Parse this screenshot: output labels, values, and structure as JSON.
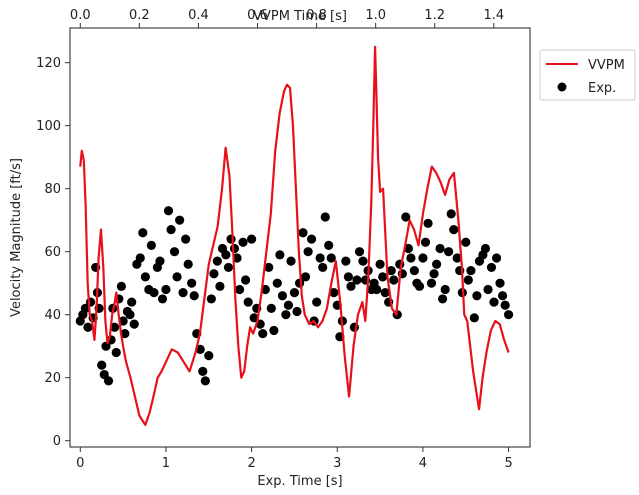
{
  "chart_data": {
    "type": "line+scatter",
    "xlabel": "Exp. Time [s]",
    "x2label": "VVPM Time [s]",
    "ylabel": "Velocity Magnitude [ft/s]",
    "xlim": [
      -0.12,
      5.25
    ],
    "x2lim": [
      -0.0348,
      1.5225
    ],
    "ylim": [
      -2,
      131
    ],
    "xticks": [
      0,
      1,
      2,
      3,
      4,
      5
    ],
    "x2ticks": [
      0.0,
      0.2,
      0.4,
      0.6,
      0.8,
      1.0,
      1.2,
      1.4
    ],
    "yticks": [
      0,
      20,
      40,
      60,
      80,
      100,
      120
    ],
    "legend_position": "outside-top-right",
    "grid": false,
    "series": [
      {
        "name": "VVPM",
        "kind": "line",
        "axis": "x2",
        "color": "#e8111b",
        "x": [
          0.0,
          0.005,
          0.012,
          0.018,
          0.025,
          0.032,
          0.04,
          0.048,
          0.055,
          0.062,
          0.07,
          0.078,
          0.085,
          0.092,
          0.1,
          0.108,
          0.115,
          0.122,
          0.13,
          0.138,
          0.145,
          0.155,
          0.17,
          0.185,
          0.2,
          0.22,
          0.235,
          0.25,
          0.262,
          0.275,
          0.29,
          0.31,
          0.33,
          0.35,
          0.37,
          0.39,
          0.405,
          0.42,
          0.435,
          0.45,
          0.465,
          0.48,
          0.492,
          0.505,
          0.515,
          0.525,
          0.535,
          0.545,
          0.555,
          0.565,
          0.575,
          0.585,
          0.6,
          0.615,
          0.63,
          0.645,
          0.66,
          0.675,
          0.69,
          0.7,
          0.71,
          0.72,
          0.73,
          0.74,
          0.75,
          0.76,
          0.775,
          0.79,
          0.805,
          0.82,
          0.835,
          0.85,
          0.865,
          0.88,
          0.895,
          0.91,
          0.925,
          0.94,
          0.955,
          0.965,
          0.975,
          0.985,
          0.992,
          0.998,
          1.002,
          1.008,
          1.015,
          1.025,
          1.04,
          1.055,
          1.07,
          1.085,
          1.1,
          1.115,
          1.13,
          1.145,
          1.16,
          1.175,
          1.19,
          1.205,
          1.22,
          1.235,
          1.25,
          1.265,
          1.28,
          1.292,
          1.3,
          1.31,
          1.32,
          1.33,
          1.34,
          1.35,
          1.362,
          1.375,
          1.39,
          1.405,
          1.42,
          1.435,
          1.45
        ],
        "y": [
          87,
          92,
          89,
          75,
          50,
          40,
          38,
          32,
          42,
          58,
          67,
          55,
          38,
          31,
          33,
          40,
          43,
          47,
          40,
          34,
          30,
          25,
          20,
          14,
          8,
          5,
          9,
          15,
          20,
          22,
          25,
          29,
          28,
          25,
          22,
          28,
          34,
          45,
          56,
          62,
          68,
          80,
          93,
          84,
          66,
          45,
          30,
          20,
          22,
          30,
          36,
          34,
          38,
          48,
          60,
          72,
          92,
          104,
          111,
          113,
          112,
          100,
          80,
          60,
          46,
          40,
          37,
          38,
          36,
          38,
          42,
          50,
          57,
          44,
          27,
          14,
          30,
          40,
          44,
          38,
          52,
          75,
          100,
          125,
          112,
          90,
          79,
          80,
          52,
          42,
          40,
          55,
          62,
          70,
          67,
          62,
          72,
          80,
          87,
          85,
          82,
          78,
          83,
          85,
          70,
          55,
          40,
          38,
          30,
          22,
          16,
          10,
          20,
          28,
          35,
          38,
          37,
          32,
          28
        ]
      },
      {
        "name": "Exp.",
        "kind": "scatter",
        "axis": "x",
        "color": "#000000",
        "x": [
          0.0,
          0.03,
          0.06,
          0.09,
          0.12,
          0.15,
          0.18,
          0.2,
          0.22,
          0.25,
          0.28,
          0.3,
          0.33,
          0.36,
          0.38,
          0.4,
          0.42,
          0.45,
          0.48,
          0.5,
          0.52,
          0.55,
          0.58,
          0.6,
          0.63,
          0.66,
          0.7,
          0.73,
          0.76,
          0.8,
          0.83,
          0.86,
          0.9,
          0.93,
          0.96,
          1.0,
          1.03,
          1.06,
          1.1,
          1.13,
          1.16,
          1.2,
          1.23,
          1.26,
          1.3,
          1.33,
          1.36,
          1.4,
          1.43,
          1.46,
          1.5,
          1.53,
          1.56,
          1.6,
          1.63,
          1.66,
          1.7,
          1.73,
          1.76,
          1.8,
          1.83,
          1.86,
          1.9,
          1.93,
          1.96,
          2.0,
          2.03,
          2.06,
          2.1,
          2.13,
          2.16,
          2.2,
          2.23,
          2.26,
          2.3,
          2.33,
          2.36,
          2.4,
          2.43,
          2.46,
          2.5,
          2.53,
          2.56,
          2.6,
          2.63,
          2.66,
          2.7,
          2.73,
          2.76,
          2.8,
          2.83,
          2.86,
          2.9,
          2.93,
          2.96,
          3.0,
          3.03,
          3.06,
          3.1,
          3.13,
          3.16,
          3.2,
          3.23,
          3.26,
          3.3,
          3.33,
          3.36,
          3.4,
          3.43,
          3.46,
          3.5,
          3.53,
          3.56,
          3.6,
          3.63,
          3.66,
          3.7,
          3.73,
          3.76,
          3.8,
          3.83,
          3.86,
          3.9,
          3.93,
          3.96,
          4.0,
          4.03,
          4.06,
          4.1,
          4.13,
          4.16,
          4.2,
          4.23,
          4.26,
          4.3,
          4.33,
          4.36,
          4.4,
          4.43,
          4.46,
          4.5,
          4.53,
          4.56,
          4.6,
          4.63,
          4.66,
          4.7,
          4.73,
          4.76,
          4.8,
          4.83,
          4.86,
          4.9,
          4.93,
          4.96,
          5.0
        ],
        "y": [
          38,
          40,
          42,
          36,
          44,
          39,
          55,
          47,
          42,
          24,
          21,
          30,
          19,
          32,
          42,
          36,
          28,
          45,
          49,
          38,
          34,
          41,
          40,
          44,
          37,
          56,
          58,
          66,
          52,
          48,
          62,
          47,
          55,
          57,
          45,
          48,
          73,
          67,
          60,
          52,
          70,
          47,
          64,
          56,
          50,
          46,
          34,
          29,
          22,
          19,
          27,
          45,
          53,
          57,
          49,
          61,
          59,
          55,
          64,
          61,
          58,
          48,
          63,
          51,
          44,
          64,
          39,
          42,
          37,
          34,
          48,
          55,
          42,
          35,
          50,
          59,
          46,
          40,
          43,
          57,
          47,
          41,
          50,
          66,
          52,
          60,
          64,
          38,
          44,
          58,
          55,
          71,
          62,
          58,
          47,
          43,
          33,
          38,
          57,
          52,
          49,
          36,
          51,
          60,
          57,
          51,
          54,
          48,
          50,
          48,
          56,
          52,
          47,
          44,
          54,
          51,
          40,
          56,
          53,
          71,
          61,
          58,
          54,
          50,
          49,
          58,
          63,
          69,
          50,
          53,
          56,
          61,
          45,
          48,
          60,
          72,
          67,
          58,
          54,
          47,
          63,
          51,
          54,
          39,
          46,
          57,
          59,
          61,
          48,
          55,
          44,
          58,
          50,
          46,
          43,
          40
        ]
      }
    ]
  }
}
